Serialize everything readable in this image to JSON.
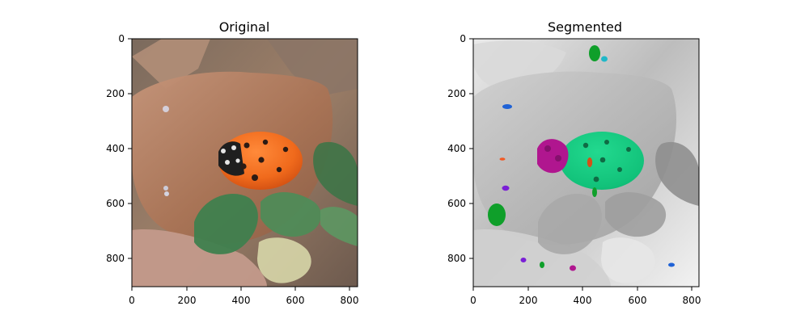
{
  "figure": {
    "panels": [
      {
        "id": "original",
        "title": "Original",
        "x_ticks": [
          "0",
          "200",
          "400",
          "600",
          "800"
        ],
        "y_ticks": [
          "0",
          "200",
          "400",
          "600",
          "800"
        ]
      },
      {
        "id": "segmented",
        "title": "Segmented",
        "x_ticks": [
          "0",
          "200",
          "400",
          "600",
          "800"
        ],
        "y_ticks": [
          "0",
          "200",
          "400",
          "600",
          "800"
        ]
      }
    ],
    "colors": {
      "ladybug": "#f06a1c",
      "ladybug_shadow": "#c9480f",
      "leaf_dry": "#b9876b",
      "leaf_green": "#4f8b57",
      "segment_green": "#12c27a",
      "segment_magenta": "#b0168f",
      "segment_blue": "#1f62d6",
      "segment_orange": "#f15a24",
      "segment_purple": "#7a1fd6",
      "segment_dark_green": "#0f9f2a",
      "segment_cyan": "#20b8c8"
    }
  }
}
